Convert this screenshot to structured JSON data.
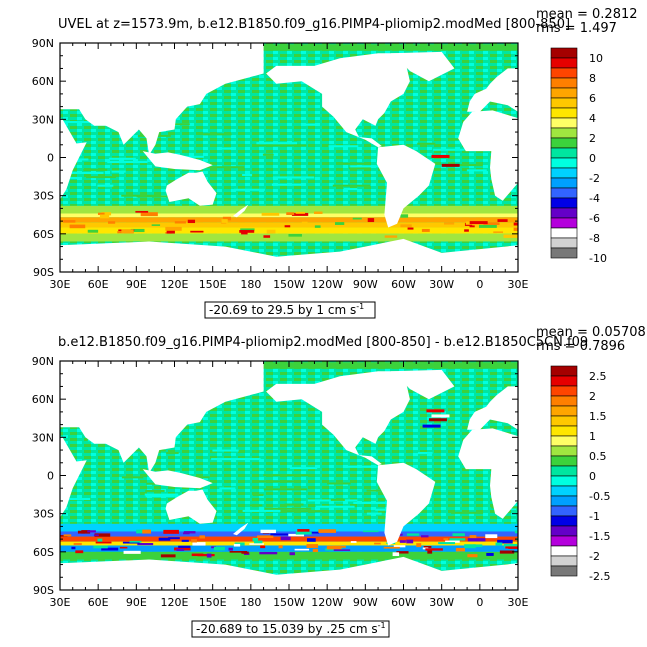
{
  "chart_data": [
    {
      "type": "heatmap",
      "title": "UVEL at z=1573.9m, b.e12.B1850.f09_g16.PIMP4-pliomip2.modMed [800-850]",
      "stats": {
        "mean": "mean = 0.2812",
        "rms": "rms = 1.497"
      },
      "y_ticks": [
        "90N",
        "60N",
        "30N",
        "0",
        "30S",
        "60S",
        "90S"
      ],
      "x_ticks": [
        "30E",
        "60E",
        "90E",
        "120E",
        "150E",
        "180",
        "150W",
        "120W",
        "90W",
        "60W",
        "30W",
        "0",
        "30E"
      ],
      "xlim": [
        30,
        390
      ],
      "ylim": [
        -90,
        90
      ],
      "colorbar_labels": [
        "10",
        "8",
        "6",
        "4",
        "2",
        "0",
        "-2",
        "-4",
        "-6",
        "-8",
        "-10"
      ],
      "contour_info": "-20.69 to 29.5 by 1 cm s",
      "contour_unit_exp": "-1",
      "colors": [
        "#a50000",
        "#e60000",
        "#ff4500",
        "#ff7f00",
        "#ffa500",
        "#ffc800",
        "#ffe600",
        "#ffff66",
        "#a0e640",
        "#3cd23c",
        "#00e6a0",
        "#00ffe0",
        "#00d2ff",
        "#00a0ff",
        "#3264ff",
        "#0000e6",
        "#6400c8",
        "#b400dc",
        "#ffffff",
        "#d2d2d2",
        "#787878"
      ]
    },
    {
      "type": "heatmap",
      "title": "b.e12.B1850.f09_g16.PIMP4-pliomip2.modMed [800-850] - b.e12.B1850C5CN.f09",
      "stats": {
        "mean": "mean = 0.05708",
        "rms": "rms = 0.7896"
      },
      "y_ticks": [
        "90N",
        "60N",
        "30N",
        "0",
        "30S",
        "60S",
        "90S"
      ],
      "x_ticks": [
        "30E",
        "60E",
        "90E",
        "120E",
        "150E",
        "180",
        "150W",
        "120W",
        "90W",
        "60W",
        "30W",
        "0",
        "30E"
      ],
      "xlim": [
        30,
        390
      ],
      "ylim": [
        -90,
        90
      ],
      "colorbar_labels": [
        "2.5",
        "2",
        "1.5",
        "1",
        "0.5",
        "0",
        "-0.5",
        "-1",
        "-1.5",
        "-2",
        "-2.5"
      ],
      "contour_info": "-20.689 to 15.039 by .25 cm s",
      "contour_unit_exp": "-1",
      "colors": [
        "#a50000",
        "#e60000",
        "#ff4500",
        "#ff7f00",
        "#ffa500",
        "#ffc800",
        "#ffe600",
        "#ffff66",
        "#a0e640",
        "#3cd23c",
        "#00e6a0",
        "#00ffe0",
        "#00d2ff",
        "#00a0ff",
        "#3264ff",
        "#0000e6",
        "#6400c8",
        "#b400dc",
        "#ffffff",
        "#d2d2d2",
        "#787878"
      ]
    }
  ]
}
